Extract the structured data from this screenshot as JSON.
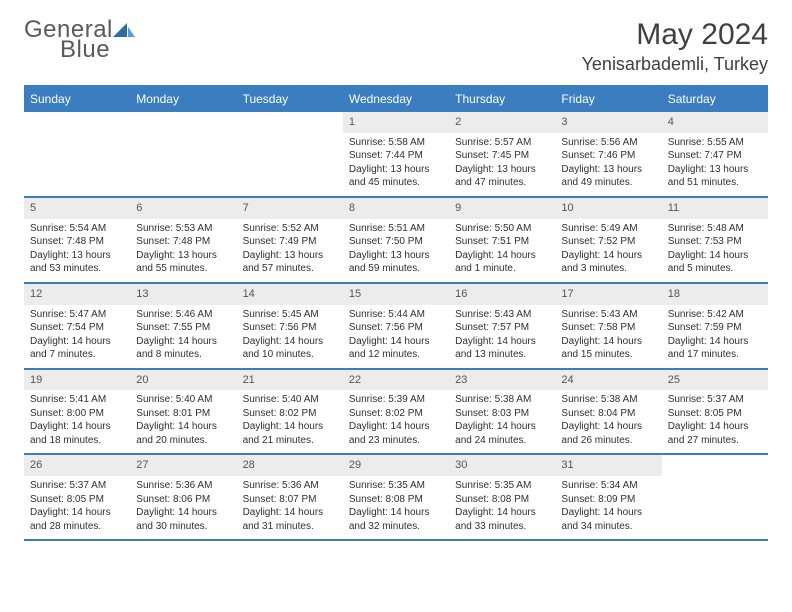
{
  "logo": {
    "general": "General",
    "blue": "Blue"
  },
  "header": {
    "month": "May 2024",
    "location": "Yenisarbademli, Turkey"
  },
  "colors": {
    "accent": "#3a7ec1",
    "header_bg": "#3a7ec1",
    "daynum_bg": "#ececec",
    "text": "#303030",
    "page_bg": "#ffffff"
  },
  "dayHeaders": [
    "Sunday",
    "Monday",
    "Tuesday",
    "Wednesday",
    "Thursday",
    "Friday",
    "Saturday"
  ],
  "weeks": [
    [
      {
        "n": "",
        "sr": "",
        "ss": "",
        "dl1": "",
        "dl2": ""
      },
      {
        "n": "",
        "sr": "",
        "ss": "",
        "dl1": "",
        "dl2": ""
      },
      {
        "n": "",
        "sr": "",
        "ss": "",
        "dl1": "",
        "dl2": ""
      },
      {
        "n": "1",
        "sr": "Sunrise: 5:58 AM",
        "ss": "Sunset: 7:44 PM",
        "dl1": "Daylight: 13 hours",
        "dl2": "and 45 minutes."
      },
      {
        "n": "2",
        "sr": "Sunrise: 5:57 AM",
        "ss": "Sunset: 7:45 PM",
        "dl1": "Daylight: 13 hours",
        "dl2": "and 47 minutes."
      },
      {
        "n": "3",
        "sr": "Sunrise: 5:56 AM",
        "ss": "Sunset: 7:46 PM",
        "dl1": "Daylight: 13 hours",
        "dl2": "and 49 minutes."
      },
      {
        "n": "4",
        "sr": "Sunrise: 5:55 AM",
        "ss": "Sunset: 7:47 PM",
        "dl1": "Daylight: 13 hours",
        "dl2": "and 51 minutes."
      }
    ],
    [
      {
        "n": "5",
        "sr": "Sunrise: 5:54 AM",
        "ss": "Sunset: 7:48 PM",
        "dl1": "Daylight: 13 hours",
        "dl2": "and 53 minutes."
      },
      {
        "n": "6",
        "sr": "Sunrise: 5:53 AM",
        "ss": "Sunset: 7:48 PM",
        "dl1": "Daylight: 13 hours",
        "dl2": "and 55 minutes."
      },
      {
        "n": "7",
        "sr": "Sunrise: 5:52 AM",
        "ss": "Sunset: 7:49 PM",
        "dl1": "Daylight: 13 hours",
        "dl2": "and 57 minutes."
      },
      {
        "n": "8",
        "sr": "Sunrise: 5:51 AM",
        "ss": "Sunset: 7:50 PM",
        "dl1": "Daylight: 13 hours",
        "dl2": "and 59 minutes."
      },
      {
        "n": "9",
        "sr": "Sunrise: 5:50 AM",
        "ss": "Sunset: 7:51 PM",
        "dl1": "Daylight: 14 hours",
        "dl2": "and 1 minute."
      },
      {
        "n": "10",
        "sr": "Sunrise: 5:49 AM",
        "ss": "Sunset: 7:52 PM",
        "dl1": "Daylight: 14 hours",
        "dl2": "and 3 minutes."
      },
      {
        "n": "11",
        "sr": "Sunrise: 5:48 AM",
        "ss": "Sunset: 7:53 PM",
        "dl1": "Daylight: 14 hours",
        "dl2": "and 5 minutes."
      }
    ],
    [
      {
        "n": "12",
        "sr": "Sunrise: 5:47 AM",
        "ss": "Sunset: 7:54 PM",
        "dl1": "Daylight: 14 hours",
        "dl2": "and 7 minutes."
      },
      {
        "n": "13",
        "sr": "Sunrise: 5:46 AM",
        "ss": "Sunset: 7:55 PM",
        "dl1": "Daylight: 14 hours",
        "dl2": "and 8 minutes."
      },
      {
        "n": "14",
        "sr": "Sunrise: 5:45 AM",
        "ss": "Sunset: 7:56 PM",
        "dl1": "Daylight: 14 hours",
        "dl2": "and 10 minutes."
      },
      {
        "n": "15",
        "sr": "Sunrise: 5:44 AM",
        "ss": "Sunset: 7:56 PM",
        "dl1": "Daylight: 14 hours",
        "dl2": "and 12 minutes."
      },
      {
        "n": "16",
        "sr": "Sunrise: 5:43 AM",
        "ss": "Sunset: 7:57 PM",
        "dl1": "Daylight: 14 hours",
        "dl2": "and 13 minutes."
      },
      {
        "n": "17",
        "sr": "Sunrise: 5:43 AM",
        "ss": "Sunset: 7:58 PM",
        "dl1": "Daylight: 14 hours",
        "dl2": "and 15 minutes."
      },
      {
        "n": "18",
        "sr": "Sunrise: 5:42 AM",
        "ss": "Sunset: 7:59 PM",
        "dl1": "Daylight: 14 hours",
        "dl2": "and 17 minutes."
      }
    ],
    [
      {
        "n": "19",
        "sr": "Sunrise: 5:41 AM",
        "ss": "Sunset: 8:00 PM",
        "dl1": "Daylight: 14 hours",
        "dl2": "and 18 minutes."
      },
      {
        "n": "20",
        "sr": "Sunrise: 5:40 AM",
        "ss": "Sunset: 8:01 PM",
        "dl1": "Daylight: 14 hours",
        "dl2": "and 20 minutes."
      },
      {
        "n": "21",
        "sr": "Sunrise: 5:40 AM",
        "ss": "Sunset: 8:02 PM",
        "dl1": "Daylight: 14 hours",
        "dl2": "and 21 minutes."
      },
      {
        "n": "22",
        "sr": "Sunrise: 5:39 AM",
        "ss": "Sunset: 8:02 PM",
        "dl1": "Daylight: 14 hours",
        "dl2": "and 23 minutes."
      },
      {
        "n": "23",
        "sr": "Sunrise: 5:38 AM",
        "ss": "Sunset: 8:03 PM",
        "dl1": "Daylight: 14 hours",
        "dl2": "and 24 minutes."
      },
      {
        "n": "24",
        "sr": "Sunrise: 5:38 AM",
        "ss": "Sunset: 8:04 PM",
        "dl1": "Daylight: 14 hours",
        "dl2": "and 26 minutes."
      },
      {
        "n": "25",
        "sr": "Sunrise: 5:37 AM",
        "ss": "Sunset: 8:05 PM",
        "dl1": "Daylight: 14 hours",
        "dl2": "and 27 minutes."
      }
    ],
    [
      {
        "n": "26",
        "sr": "Sunrise: 5:37 AM",
        "ss": "Sunset: 8:05 PM",
        "dl1": "Daylight: 14 hours",
        "dl2": "and 28 minutes."
      },
      {
        "n": "27",
        "sr": "Sunrise: 5:36 AM",
        "ss": "Sunset: 8:06 PM",
        "dl1": "Daylight: 14 hours",
        "dl2": "and 30 minutes."
      },
      {
        "n": "28",
        "sr": "Sunrise: 5:36 AM",
        "ss": "Sunset: 8:07 PM",
        "dl1": "Daylight: 14 hours",
        "dl2": "and 31 minutes."
      },
      {
        "n": "29",
        "sr": "Sunrise: 5:35 AM",
        "ss": "Sunset: 8:08 PM",
        "dl1": "Daylight: 14 hours",
        "dl2": "and 32 minutes."
      },
      {
        "n": "30",
        "sr": "Sunrise: 5:35 AM",
        "ss": "Sunset: 8:08 PM",
        "dl1": "Daylight: 14 hours",
        "dl2": "and 33 minutes."
      },
      {
        "n": "31",
        "sr": "Sunrise: 5:34 AM",
        "ss": "Sunset: 8:09 PM",
        "dl1": "Daylight: 14 hours",
        "dl2": "and 34 minutes."
      },
      {
        "n": "",
        "sr": "",
        "ss": "",
        "dl1": "",
        "dl2": ""
      }
    ]
  ]
}
